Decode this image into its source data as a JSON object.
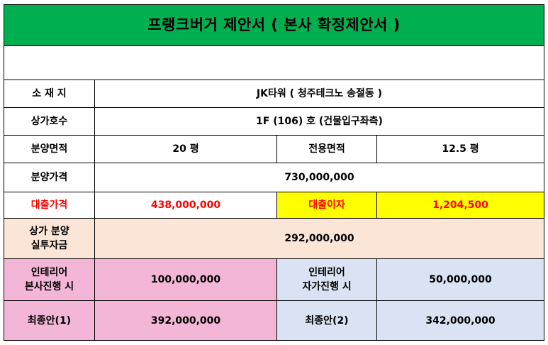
{
  "title": "프랭크버거 제안서 ( 본사 확정제안서 )",
  "location": {
    "label": "소 재 지",
    "value": "JK타워 ( 청주테크노 송절동 )"
  },
  "unit": {
    "label": "상가호수",
    "value": "1F (106) 호 (건물입구좌측)"
  },
  "area": {
    "sale_label": "분양면적",
    "sale_value": "20 평",
    "exclusive_label": "전용면적",
    "exclusive_value": "12.5 평"
  },
  "price": {
    "label": "분양가격",
    "value": "730,000,000"
  },
  "loan": {
    "label": "대출가격",
    "value": "438,000,000",
    "interest_label": "대출이자",
    "interest_value": "1,204,500"
  },
  "actual_funds": {
    "label_line1": "상가 분양",
    "label_line2": "실투자금",
    "value": "292,000,000"
  },
  "interior": {
    "hq_label_line1": "인테리어",
    "hq_label_line2": "본사진행 시",
    "hq_value": "100,000,000",
    "self_label_line1": "인테리어",
    "self_label_line2": "자가진행 시",
    "self_value": "50,000,000"
  },
  "final": {
    "label1": "최종안(1)",
    "value1": "392,000,000",
    "label2": "최종안(2)",
    "value2": "342,000,000"
  },
  "colors": {
    "title_bg": "#00b050",
    "loan_text": "#ff0000",
    "interest_bg": "#ffff00",
    "actual_funds_bg": "#fbe5d6",
    "hq_bg": "#f4b6d6",
    "self_bg": "#dae3f3"
  }
}
